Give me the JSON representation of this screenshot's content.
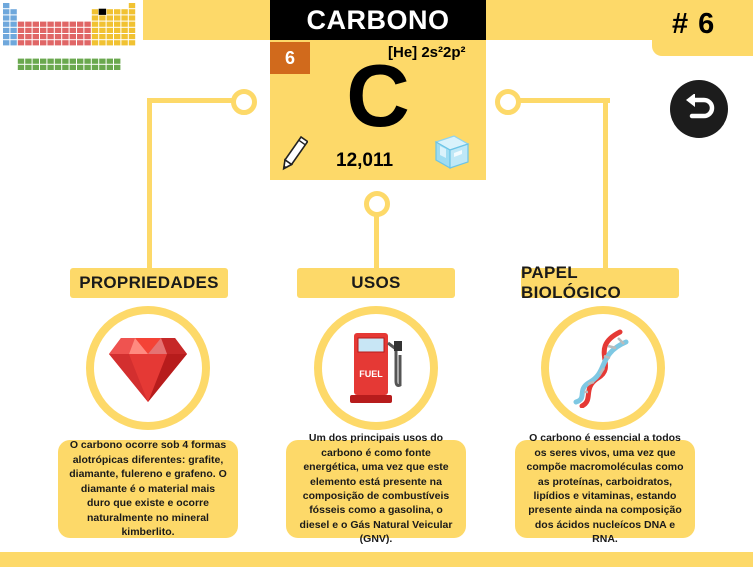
{
  "element": {
    "name": "CARBONO",
    "atomic_number": "6",
    "symbol": "C",
    "configuration": "[He] 2s²2p²",
    "atomic_mass": "12,011"
  },
  "badge": {
    "number": "# 6"
  },
  "sections": [
    {
      "title": "PROPRIEDADES",
      "icon": "diamond-icon",
      "text": "O carbono ocorre sob 4 formas alotrópicas diferentes: grafite, diamante, fulereno e grafeno. O diamante é o material mais duro que existe e ocorre naturalmente no mineral kimberlito."
    },
    {
      "title": "USOS",
      "icon": "fuel-pump-icon",
      "icon_label": "FUEL",
      "text": "Um dos principais usos do carbono é como fonte energética, uma vez que este elemento está presente na composição de combustíveis fósseis como a gasolina, o diesel e o Gás Natural Veicular (GNV)."
    },
    {
      "title": "PAPEL BIOLÓGICO",
      "icon": "dna-icon",
      "text": "O carbono é essencial a todos os seres vivos, uma vez que compõe macromoléculas como as proteínas, carboidratos, lipídios e vitaminas, estando presente ainda na composição dos ácidos nucleícos DNA e RNA."
    }
  ],
  "colors": {
    "accent": "#fdd969",
    "atomic_number_bg": "#d16a1c",
    "title_bg": "#000000",
    "back_button": "#1c1c1c"
  }
}
